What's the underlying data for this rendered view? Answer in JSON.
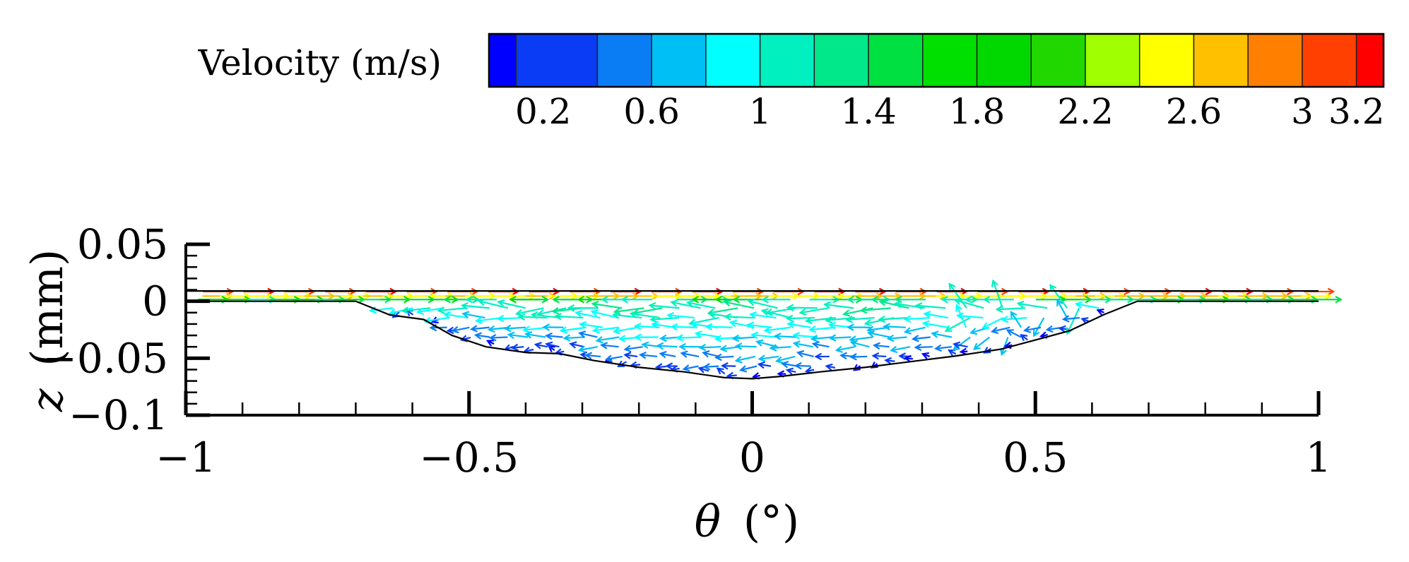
{
  "chart_data": {
    "type": "vector-field",
    "colorbar": {
      "title": "Velocity (m/s)",
      "min": 0,
      "max": 3.3,
      "ticks": [
        "0.2",
        "0.6",
        "1",
        "1.4",
        "1.8",
        "2.2",
        "2.6",
        "3",
        "3.2"
      ],
      "tick_values": [
        0.2,
        0.6,
        1.0,
        1.4,
        1.8,
        2.2,
        2.6,
        3.0,
        3.2
      ],
      "levels": [
        0,
        0.1,
        0.4,
        0.6,
        0.8,
        1.0,
        1.2,
        1.4,
        1.6,
        1.8,
        2.0,
        2.2,
        2.4,
        2.6,
        2.8,
        3.0,
        3.2,
        3.3
      ],
      "colors": [
        "#0000ff",
        "#0a3cf5",
        "#0a7df5",
        "#00bff5",
        "#00ffff",
        "#00f0c0",
        "#00e88a",
        "#00e040",
        "#00e000",
        "#00d800",
        "#20d800",
        "#a0ff00",
        "#ffff00",
        "#ffc000",
        "#ff8000",
        "#ff4000",
        "#ff0000"
      ]
    },
    "xlabel_symbol": "θ",
    "xlabel_unit": "(°)",
    "ylabel_symbol": "z",
    "ylabel_unit": "(mm)",
    "xlim": [
      -1,
      1
    ],
    "ylim": [
      -0.1,
      0.05
    ],
    "x_ticks": [
      "−1",
      "−0.5",
      "0",
      "0.5",
      "1"
    ],
    "x_tick_values": [
      -1,
      -0.5,
      0,
      0.5,
      1
    ],
    "y_ticks": [
      "0.05",
      "0",
      "−0.05",
      "−0.1"
    ],
    "y_tick_values": [
      0.05,
      0,
      -0.05,
      -0.1
    ],
    "boundary": {
      "top_surface_z": 0.009,
      "groove_profile": [
        [
          -1.0,
          0.0
        ],
        [
          -0.7,
          0.0
        ],
        [
          -0.64,
          -0.012
        ],
        [
          -0.58,
          -0.016
        ],
        [
          -0.53,
          -0.03
        ],
        [
          -0.47,
          -0.04
        ],
        [
          -0.4,
          -0.045
        ],
        [
          -0.34,
          -0.046
        ],
        [
          -0.28,
          -0.052
        ],
        [
          -0.2,
          -0.058
        ],
        [
          -0.12,
          -0.062
        ],
        [
          -0.05,
          -0.067
        ],
        [
          0.0,
          -0.068
        ],
        [
          0.05,
          -0.066
        ],
        [
          0.12,
          -0.062
        ],
        [
          0.2,
          -0.058
        ],
        [
          0.28,
          -0.053
        ],
        [
          0.36,
          -0.048
        ],
        [
          0.44,
          -0.042
        ],
        [
          0.5,
          -0.034
        ],
        [
          0.56,
          -0.026
        ],
        [
          0.62,
          -0.012
        ],
        [
          0.68,
          0.0
        ],
        [
          1.0,
          0.0
        ]
      ]
    }
  }
}
